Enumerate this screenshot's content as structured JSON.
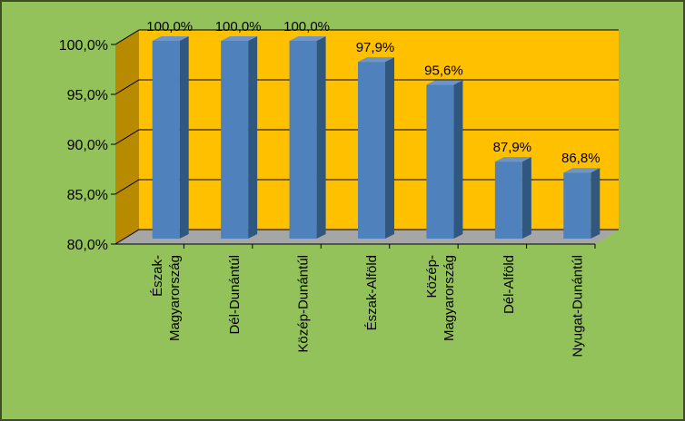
{
  "chart_data": {
    "type": "bar",
    "title": "",
    "xlabel": "",
    "ylabel": "",
    "categories": [
      [
        "Észak-",
        "Magyarország"
      ],
      [
        "Dél-Dunántúl"
      ],
      [
        "Közép-Dunántúl"
      ],
      [
        "Észak-Alföld"
      ],
      [
        "Közép-",
        "Magyarország"
      ],
      [
        "Dél-Alföld"
      ],
      [
        "Nyugat-Dunántúl"
      ]
    ],
    "values": [
      100.0,
      100.0,
      100.0,
      97.9,
      95.6,
      87.9,
      86.8
    ],
    "data_labels": [
      "100,0%",
      "100,0%",
      "100,0%",
      "97,9%",
      "95,6%",
      "87,9%",
      "86,8%"
    ],
    "ylim": [
      80,
      100
    ],
    "yticks": [
      80,
      85,
      90,
      95,
      100
    ],
    "ytick_labels": [
      "80,0%",
      "85,0%",
      "90,0%",
      "95,0%",
      "100,0%"
    ],
    "grid": true,
    "legend": "none",
    "style": "3d-column",
    "colors": {
      "background": "#94c25a",
      "border": "#3d4d24",
      "wall": "#ffc000",
      "side_wall": "#b88a00",
      "floor": "#a6a6a6",
      "bar_front": "#4f81bd",
      "bar_side": "#2f5780",
      "bar_top": "#6d95c8"
    }
  }
}
